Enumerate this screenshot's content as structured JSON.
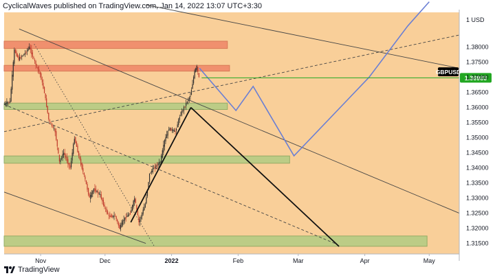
{
  "header": {
    "text": "CyclicalWaves published on TradingView.com, Jan 14, 2022 13:07 UTC+3:30"
  },
  "footer": {
    "brand": "TradingView"
  },
  "colors": {
    "background": "#f9cf99",
    "bullish": "#2c2c2c",
    "bearish": "#c0392b",
    "resistance_zone": "#f08a6a",
    "support_zone": "#b6cc84",
    "projection": "#6a7fd4",
    "current_price_line": "#22a722",
    "current_price_label": "#22a722",
    "symbol_label": "#000000"
  },
  "chart_data": {
    "type": "candlestick",
    "symbol": "GBPUSD",
    "currency": "USD",
    "current_price": 1.36983,
    "current_price_label": "1.36983",
    "ylim": [
      1.3115,
      1.3915
    ],
    "y_ticks": [
      "1.38000",
      "1.37500",
      "1.37000",
      "1.36500",
      "1.36000",
      "1.35500",
      "1.35000",
      "1.34500",
      "1.34000",
      "1.33500",
      "1.33000",
      "1.32500",
      "1.32000",
      "1.31500"
    ],
    "y_top_label": "1 USD",
    "x_ticks": [
      {
        "label": "Nov",
        "date": "2021-11-01"
      },
      {
        "label": "Dec",
        "date": "2021-12-01"
      },
      {
        "label": "2022",
        "date": "2022-01-01"
      },
      {
        "label": "Feb",
        "date": "2022-02-01"
      },
      {
        "label": "Mar",
        "date": "2022-03-01"
      },
      {
        "label": "Apr",
        "date": "2022-04-01"
      },
      {
        "label": "May",
        "date": "2022-05-01"
      }
    ],
    "xlim": [
      "2021-10-15",
      "2022-05-15"
    ],
    "price_path": [
      [
        "2021-10-15",
        1.361
      ],
      [
        "2021-10-18",
        1.362
      ],
      [
        "2021-10-20",
        1.379
      ],
      [
        "2021-10-22",
        1.376
      ],
      [
        "2021-10-25",
        1.378
      ],
      [
        "2021-10-27",
        1.38
      ],
      [
        "2021-10-29",
        1.376
      ],
      [
        "2021-11-01",
        1.371
      ],
      [
        "2021-11-03",
        1.365
      ],
      [
        "2021-11-05",
        1.356
      ],
      [
        "2021-11-08",
        1.352
      ],
      [
        "2021-11-10",
        1.342
      ],
      [
        "2021-11-12",
        1.345
      ],
      [
        "2021-11-15",
        1.34
      ],
      [
        "2021-11-17",
        1.35
      ],
      [
        "2021-11-19",
        1.344
      ],
      [
        "2021-11-22",
        1.336
      ],
      [
        "2021-11-24",
        1.33
      ],
      [
        "2021-11-26",
        1.333
      ],
      [
        "2021-11-29",
        1.331
      ],
      [
        "2021-12-01",
        1.327
      ],
      [
        "2021-12-03",
        1.324
      ],
      [
        "2021-12-06",
        1.324
      ],
      [
        "2021-12-08",
        1.32
      ],
      [
        "2021-12-10",
        1.323
      ],
      [
        "2021-12-13",
        1.325
      ],
      [
        "2021-12-15",
        1.33
      ],
      [
        "2021-12-17",
        1.322
      ],
      [
        "2021-12-20",
        1.328
      ],
      [
        "2021-12-22",
        1.338
      ],
      [
        "2021-12-24",
        1.34
      ],
      [
        "2021-12-27",
        1.342
      ],
      [
        "2021-12-29",
        1.349
      ],
      [
        "2021-12-31",
        1.353
      ],
      [
        "2022-01-03",
        1.352
      ],
      [
        "2022-01-05",
        1.357
      ],
      [
        "2022-01-07",
        1.36
      ],
      [
        "2022-01-10",
        1.364
      ],
      [
        "2022-01-12",
        1.372
      ],
      [
        "2022-01-13",
        1.3735
      ],
      [
        "2022-01-14",
        1.36983
      ]
    ],
    "zones": [
      {
        "name": "resistance-zone-upper",
        "kind": "resistance",
        "from": "2021-10-15",
        "to": "2022-01-27",
        "low": 1.38,
        "high": 1.3815
      },
      {
        "name": "resistance-zone-lower",
        "kind": "resistance",
        "from": "2021-10-15",
        "to": "2022-01-28",
        "low": 1.3725,
        "high": 1.3735
      },
      {
        "name": "support-zone-upper",
        "kind": "support",
        "from": "2021-10-15",
        "to": "2022-01-27",
        "low": 1.3598,
        "high": 1.361
      },
      {
        "name": "support-zone-middle",
        "kind": "support",
        "from": "2021-10-15",
        "to": "2022-02-25",
        "low": 1.342,
        "high": 1.3435
      },
      {
        "name": "support-zone-lower",
        "kind": "support",
        "from": "2021-10-15",
        "to": "2022-04-30",
        "low": 1.3145,
        "high": 1.317
      }
    ],
    "trendlines": [
      {
        "name": "channel-upper-line",
        "style": "solid",
        "points": [
          [
            "2021-10-22",
            1.386
          ],
          [
            "2022-05-15",
            1.325
          ]
        ]
      },
      {
        "name": "channel-lower-line",
        "style": "solid",
        "points": [
          [
            "2021-10-15",
            1.332
          ],
          [
            "2021-12-20",
            1.315
          ]
        ]
      },
      {
        "name": "top-descending-line",
        "style": "solid",
        "points": [
          [
            "2021-12-20",
            1.394
          ],
          [
            "2022-05-15",
            1.373
          ]
        ]
      },
      {
        "name": "rising-dashed-line",
        "style": "dashed",
        "points": [
          [
            "2021-10-15",
            1.352
          ],
          [
            "2022-05-15",
            1.384
          ]
        ]
      },
      {
        "name": "falling-dashed-line",
        "style": "dashed",
        "points": [
          [
            "2021-10-15",
            1.361
          ],
          [
            "2022-03-18",
            1.315
          ]
        ]
      },
      {
        "name": "dotted-drop-line",
        "style": "dotted",
        "points": [
          [
            "2021-10-29",
            1.381
          ],
          [
            "2021-12-24",
            1.314
          ]
        ]
      }
    ],
    "impulse_lines": [
      {
        "name": "impulse-up-line",
        "points": [
          [
            "2021-12-13",
            1.322
          ],
          [
            "2022-01-10",
            1.36
          ]
        ]
      },
      {
        "name": "impulse-down-line",
        "points": [
          [
            "2022-01-10",
            1.36
          ],
          [
            "2022-03-20",
            1.314
          ]
        ]
      }
    ],
    "projection_path": [
      [
        "2022-01-14",
        1.373
      ],
      [
        "2022-01-31",
        1.359
      ],
      [
        "2022-02-08",
        1.367
      ],
      [
        "2022-02-27",
        1.344
      ],
      [
        "2022-04-03",
        1.37
      ],
      [
        "2022-04-21",
        1.387
      ],
      [
        "2022-05-01",
        1.395
      ]
    ],
    "current_price_line": {
      "from": "2022-01-15",
      "price": 1.36983
    }
  }
}
